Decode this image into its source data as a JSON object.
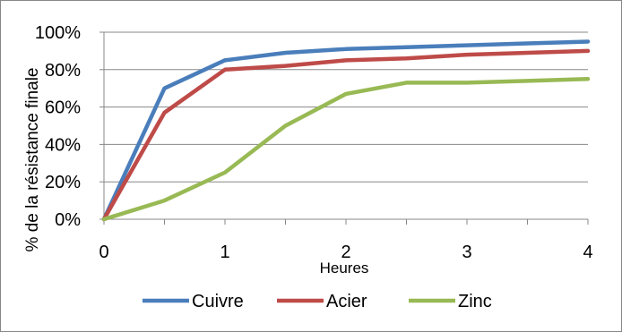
{
  "chart_data": {
    "type": "line",
    "xlabel": "Heures",
    "ylabel": "% de la résistance finale",
    "xlim": [
      0,
      4
    ],
    "ylim": [
      0,
      100
    ],
    "x_ticks": [
      0,
      0.5,
      1,
      1.5,
      2,
      2.5,
      3,
      3.5,
      4
    ],
    "x_tick_labels": [
      "0",
      "",
      "1",
      "",
      "2",
      "",
      "3",
      "",
      "4"
    ],
    "y_ticks": [
      0,
      20,
      40,
      60,
      80,
      100
    ],
    "y_tick_labels": [
      "0%",
      "20%",
      "40%",
      "60%",
      "80%",
      "100%"
    ],
    "grid": true,
    "legend_position": "bottom",
    "series": [
      {
        "name": "Cuivre",
        "color": "#4a7ebb",
        "x": [
          0,
          0.5,
          1,
          1.5,
          2,
          2.5,
          3,
          3.5,
          4
        ],
        "y": [
          0,
          70,
          85,
          89,
          91,
          92,
          93,
          94,
          95
        ]
      },
      {
        "name": "Acier",
        "color": "#be4b48",
        "x": [
          0,
          0.5,
          1,
          1.5,
          2,
          2.5,
          3,
          3.5,
          4
        ],
        "y": [
          0,
          57,
          80,
          82,
          85,
          86,
          88,
          89,
          90
        ]
      },
      {
        "name": "Zinc",
        "color": "#98b954",
        "x": [
          0,
          0.5,
          1,
          1.5,
          2,
          2.5,
          3,
          3.5,
          4
        ],
        "y": [
          0,
          10,
          25,
          50,
          67,
          73,
          73,
          74,
          75
        ]
      }
    ]
  }
}
